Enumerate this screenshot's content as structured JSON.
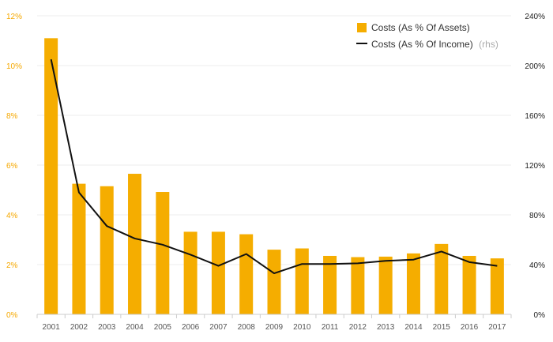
{
  "chart_data": {
    "type": "bar",
    "title": "",
    "xlabel": "",
    "categories": [
      "2001",
      "2002",
      "2003",
      "2004",
      "2005",
      "2006",
      "2007",
      "2008",
      "2009",
      "2010",
      "2011",
      "2012",
      "2013",
      "2014",
      "2015",
      "2016",
      "2017"
    ],
    "series": [
      {
        "name": "Costs (As % Of Assets)",
        "type": "bar",
        "axis": "left",
        "color": "#f5ad00",
        "values": [
          11.1,
          5.25,
          5.15,
          5.65,
          4.92,
          3.32,
          3.32,
          3.22,
          2.6,
          2.65,
          2.35,
          2.3,
          2.32,
          2.45,
          2.83,
          2.35,
          2.25
        ]
      },
      {
        "name": "Costs (As % Of Income)",
        "name_suffix": "(rhs)",
        "type": "line",
        "axis": "right",
        "color": "#111111",
        "values": [
          205,
          98,
          71,
          61,
          56,
          48,
          39,
          48.5,
          33,
          40.5,
          40.5,
          41,
          43,
          44,
          50.5,
          42,
          39
        ]
      }
    ],
    "y_left": {
      "ylim": [
        0,
        12
      ],
      "ticks": [
        0,
        2,
        4,
        6,
        8,
        10,
        12
      ],
      "tick_labels": [
        "0%",
        "2%",
        "4%",
        "6%",
        "8%",
        "10%",
        "12%"
      ],
      "color": "#f5a800"
    },
    "y_right": {
      "ylim": [
        0,
        240
      ],
      "ticks": [
        0,
        40,
        80,
        120,
        160,
        200,
        240
      ],
      "tick_labels": [
        "0%",
        "40%",
        "80%",
        "120%",
        "160%",
        "200%",
        "240%"
      ],
      "color": "#222222"
    },
    "grid": true,
    "legend_position": "top-right"
  }
}
